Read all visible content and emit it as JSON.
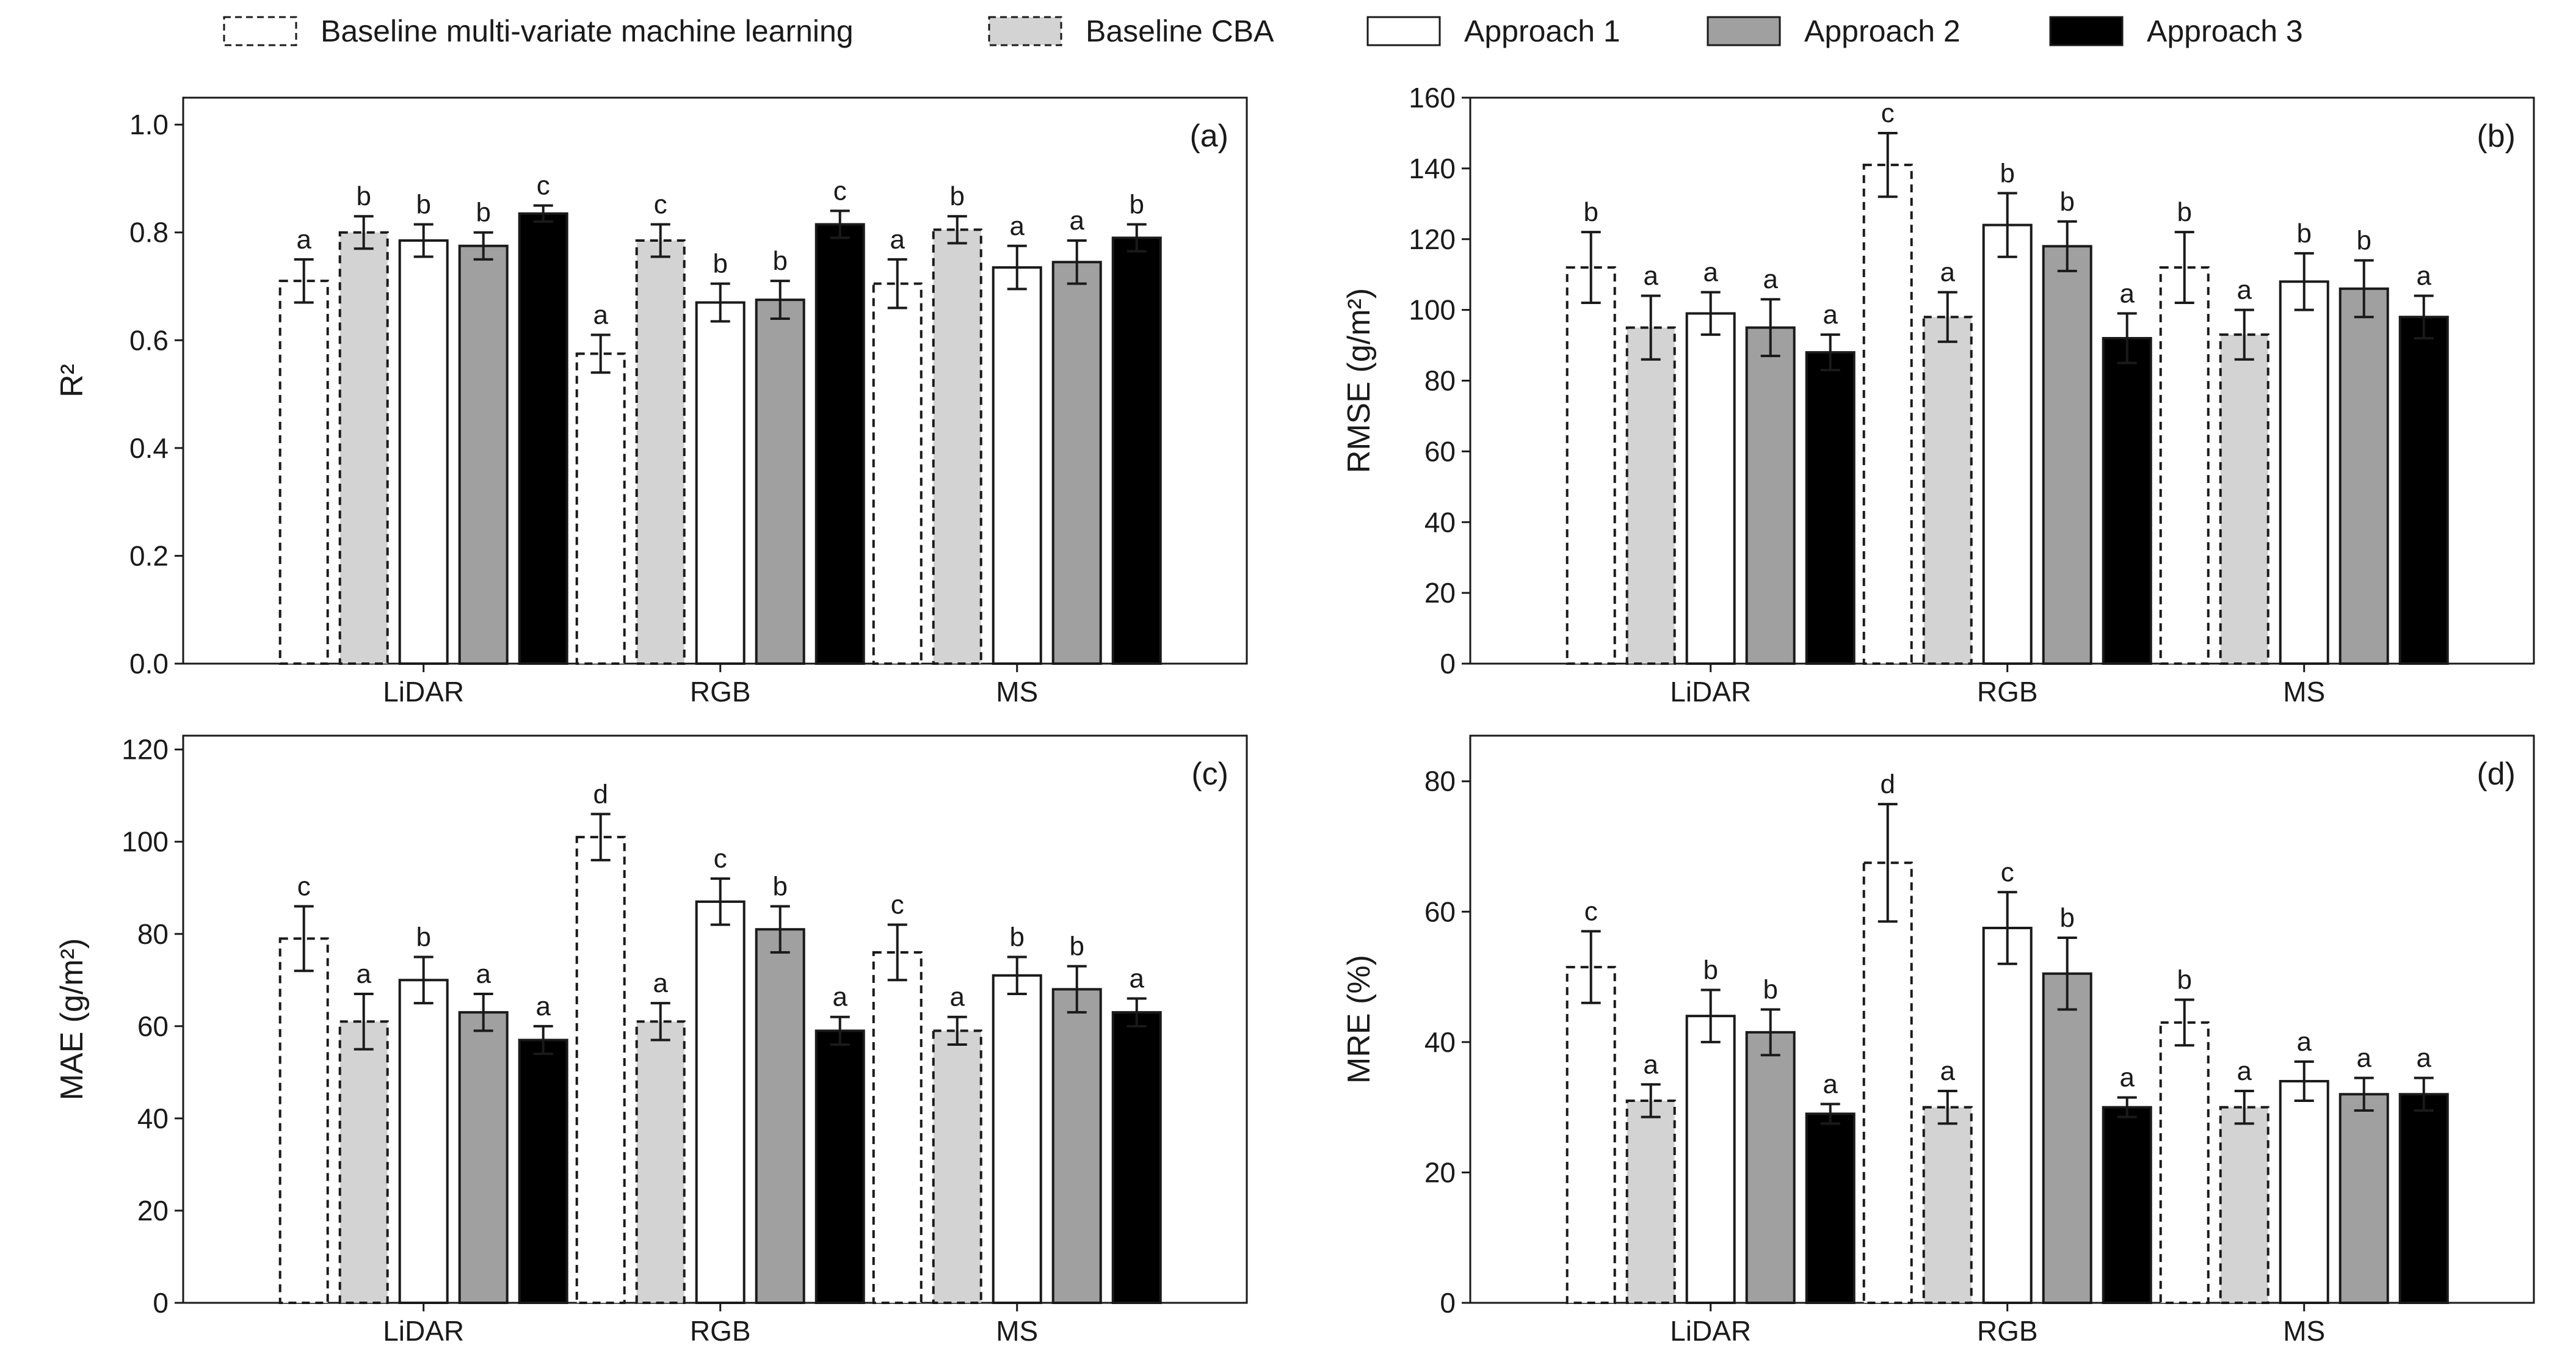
{
  "legend": [
    {
      "name": "Baseline multi-variate machine learning",
      "fill": "#ffffff",
      "dashed": true
    },
    {
      "name": "Baseline CBA",
      "fill": "#d3d3d3",
      "dashed": true
    },
    {
      "name": "Approach 1",
      "fill": "#ffffff",
      "dashed": false
    },
    {
      "name": "Approach 2",
      "fill": "#a0a0a0",
      "dashed": false
    },
    {
      "name": "Approach 3",
      "fill": "#000000",
      "dashed": false
    }
  ],
  "chart_data": [
    {
      "type": "bar",
      "panel_label": "(a)",
      "ylabel": "R²",
      "ylim": [
        0,
        1.05
      ],
      "yticks": [
        0.0,
        0.2,
        0.4,
        0.6,
        0.8,
        1.0
      ],
      "ytick_labels": [
        "0.0",
        "0.2",
        "0.4",
        "0.6",
        "0.8",
        "1.0"
      ],
      "categories": [
        "LiDAR",
        "RGB",
        "MS"
      ],
      "series": [
        {
          "name": "Baseline multi-variate machine learning",
          "values": [
            0.71,
            0.575,
            0.705
          ],
          "errors": [
            0.04,
            0.035,
            0.045
          ],
          "letters": [
            "a",
            "a",
            "a"
          ]
        },
        {
          "name": "Baseline CBA",
          "values": [
            0.8,
            0.785,
            0.805
          ],
          "errors": [
            0.03,
            0.03,
            0.025
          ],
          "letters": [
            "b",
            "c",
            "b"
          ]
        },
        {
          "name": "Approach 1",
          "values": [
            0.785,
            0.67,
            0.735
          ],
          "errors": [
            0.03,
            0.035,
            0.04
          ],
          "letters": [
            "b",
            "b",
            "a"
          ]
        },
        {
          "name": "Approach 2",
          "values": [
            0.775,
            0.675,
            0.745
          ],
          "errors": [
            0.025,
            0.035,
            0.04
          ],
          "letters": [
            "b",
            "b",
            "a"
          ]
        },
        {
          "name": "Approach 3",
          "values": [
            0.835,
            0.815,
            0.79
          ],
          "errors": [
            0.015,
            0.025,
            0.025
          ],
          "letters": [
            "c",
            "c",
            "b"
          ]
        }
      ]
    },
    {
      "type": "bar",
      "panel_label": "(b)",
      "ylabel": "RMSE (g/m²)",
      "ylim": [
        0,
        160
      ],
      "yticks": [
        0,
        20,
        40,
        60,
        80,
        100,
        120,
        140,
        160
      ],
      "ytick_labels": [
        "0",
        "20",
        "40",
        "60",
        "80",
        "100",
        "120",
        "140",
        "160"
      ],
      "categories": [
        "LiDAR",
        "RGB",
        "MS"
      ],
      "series": [
        {
          "name": "Baseline multi-variate machine learning",
          "values": [
            112,
            141,
            112
          ],
          "errors": [
            10,
            9,
            10
          ],
          "letters": [
            "b",
            "c",
            "b"
          ]
        },
        {
          "name": "Baseline CBA",
          "values": [
            95,
            98,
            93
          ],
          "errors": [
            9,
            7,
            7
          ],
          "letters": [
            "a",
            "a",
            "a"
          ]
        },
        {
          "name": "Approach 1",
          "values": [
            99,
            124,
            108
          ],
          "errors": [
            6,
            9,
            8
          ],
          "letters": [
            "a",
            "b",
            "b"
          ]
        },
        {
          "name": "Approach 2",
          "values": [
            95,
            118,
            106
          ],
          "errors": [
            8,
            7,
            8
          ],
          "letters": [
            "a",
            "b",
            "b"
          ]
        },
        {
          "name": "Approach 3",
          "values": [
            88,
            92,
            98
          ],
          "errors": [
            5,
            7,
            6
          ],
          "letters": [
            "a",
            "a",
            "a"
          ]
        }
      ]
    },
    {
      "type": "bar",
      "panel_label": "(c)",
      "ylabel": "MAE (g/m²)",
      "ylim": [
        0,
        123
      ],
      "yticks": [
        0,
        20,
        40,
        60,
        80,
        100,
        120
      ],
      "ytick_labels": [
        "0",
        "20",
        "40",
        "60",
        "80",
        "100",
        "120"
      ],
      "categories": [
        "LiDAR",
        "RGB",
        "MS"
      ],
      "series": [
        {
          "name": "Baseline multi-variate machine learning",
          "values": [
            79,
            101,
            76
          ],
          "errors": [
            7,
            5,
            6
          ],
          "letters": [
            "c",
            "d",
            "c"
          ]
        },
        {
          "name": "Baseline CBA",
          "values": [
            61,
            61,
            59
          ],
          "errors": [
            6,
            4,
            3
          ],
          "letters": [
            "a",
            "a",
            "a"
          ]
        },
        {
          "name": "Approach 1",
          "values": [
            70,
            87,
            71
          ],
          "errors": [
            5,
            5,
            4
          ],
          "letters": [
            "b",
            "c",
            "b"
          ]
        },
        {
          "name": "Approach 2",
          "values": [
            63,
            81,
            68
          ],
          "errors": [
            4,
            5,
            5
          ],
          "letters": [
            "a",
            "b",
            "b"
          ]
        },
        {
          "name": "Approach 3",
          "values": [
            57,
            59,
            63
          ],
          "errors": [
            3,
            3,
            3
          ],
          "letters": [
            "a",
            "a",
            "a"
          ]
        }
      ]
    },
    {
      "type": "bar",
      "panel_label": "(d)",
      "ylabel": "MRE (%)",
      "ylim": [
        0,
        87
      ],
      "yticks": [
        0,
        20,
        40,
        60,
        80
      ],
      "ytick_labels": [
        "0",
        "20",
        "40",
        "60",
        "80"
      ],
      "categories": [
        "LiDAR",
        "RGB",
        "MS"
      ],
      "series": [
        {
          "name": "Baseline multi-variate machine learning",
          "values": [
            51.5,
            67.5,
            43
          ],
          "errors": [
            5.5,
            9,
            3.5
          ],
          "letters": [
            "c",
            "d",
            "b"
          ]
        },
        {
          "name": "Baseline CBA",
          "values": [
            31,
            30,
            30
          ],
          "errors": [
            2.5,
            2.5,
            2.5
          ],
          "letters": [
            "a",
            "a",
            "a"
          ]
        },
        {
          "name": "Approach 1",
          "values": [
            44,
            57.5,
            34
          ],
          "errors": [
            4,
            5.5,
            3
          ],
          "letters": [
            "b",
            "c",
            "a"
          ]
        },
        {
          "name": "Approach 2",
          "values": [
            41.5,
            50.5,
            32
          ],
          "errors": [
            3.5,
            5.5,
            2.5
          ],
          "letters": [
            "b",
            "b",
            "a"
          ]
        },
        {
          "name": "Approach 3",
          "values": [
            29,
            30,
            32
          ],
          "errors": [
            1.5,
            1.5,
            2.5
          ],
          "letters": [
            "a",
            "a",
            "a"
          ]
        }
      ]
    }
  ]
}
